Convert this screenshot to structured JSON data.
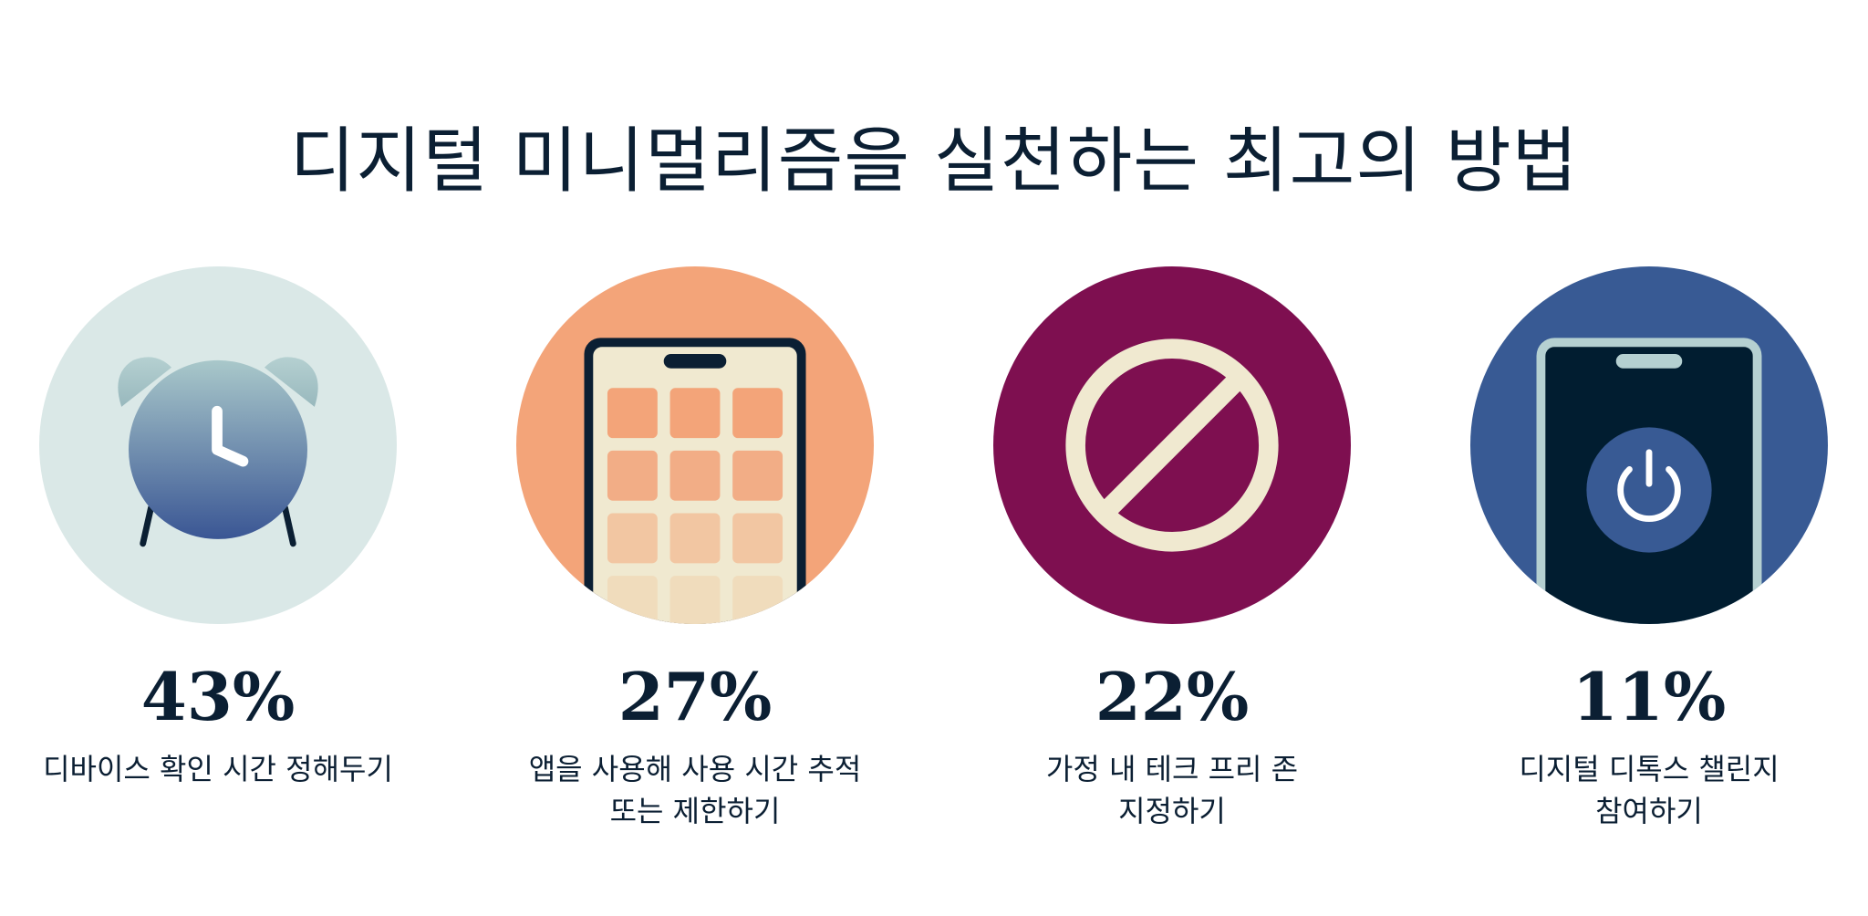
{
  "title": "디지털 미니멀리즘을 실천하는 최고의 방법",
  "items": [
    {
      "percent": "43%",
      "label": "디바이스 확인 시간 정해두기",
      "icon": "alarm-clock-icon",
      "color": "#dae8e7"
    },
    {
      "percent": "27%",
      "label": "앱을 사용해 사용 시간 추적\n또는 제한하기",
      "icon": "phone-apps-icon",
      "color": "#f3a479"
    },
    {
      "percent": "22%",
      "label": "가정 내 테크 프리 존\n지정하기",
      "icon": "prohibited-icon",
      "color": "#7e0f50"
    },
    {
      "percent": "11%",
      "label": "디지털 디톡스 챌린지\n참여하기",
      "icon": "phone-power-icon",
      "color": "#385a94"
    }
  ]
}
